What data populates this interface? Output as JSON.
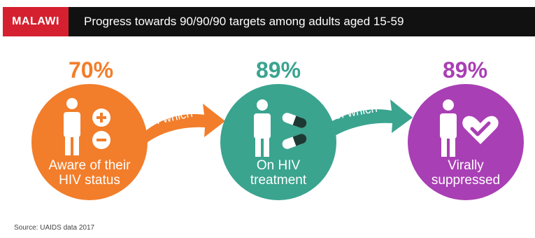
{
  "header": {
    "tag": "MALAWI",
    "title": "Progress towards 90/90/90 targets among adults aged 15-59"
  },
  "stages": [
    {
      "percent": "70%",
      "label_line1": "Aware of their",
      "label_line2": "HIV status",
      "color": "#f27d2a"
    },
    {
      "percent": "89%",
      "label_line1": "On HIV",
      "label_line2": "treatment",
      "color": "#3aa48f"
    },
    {
      "percent": "89%",
      "label_line1": "Virally",
      "label_line2": "suppressed",
      "color": "#a93fb4"
    }
  ],
  "connectors": [
    {
      "text": "of which",
      "color": "#f27d2a"
    },
    {
      "text": "of which",
      "color": "#3aa48f"
    }
  ],
  "icons": [
    "person-icon",
    "plus-minus-icon",
    "pills-icon",
    "heart-check-icon"
  ],
  "source": "Source: UAIDS data 2017"
}
